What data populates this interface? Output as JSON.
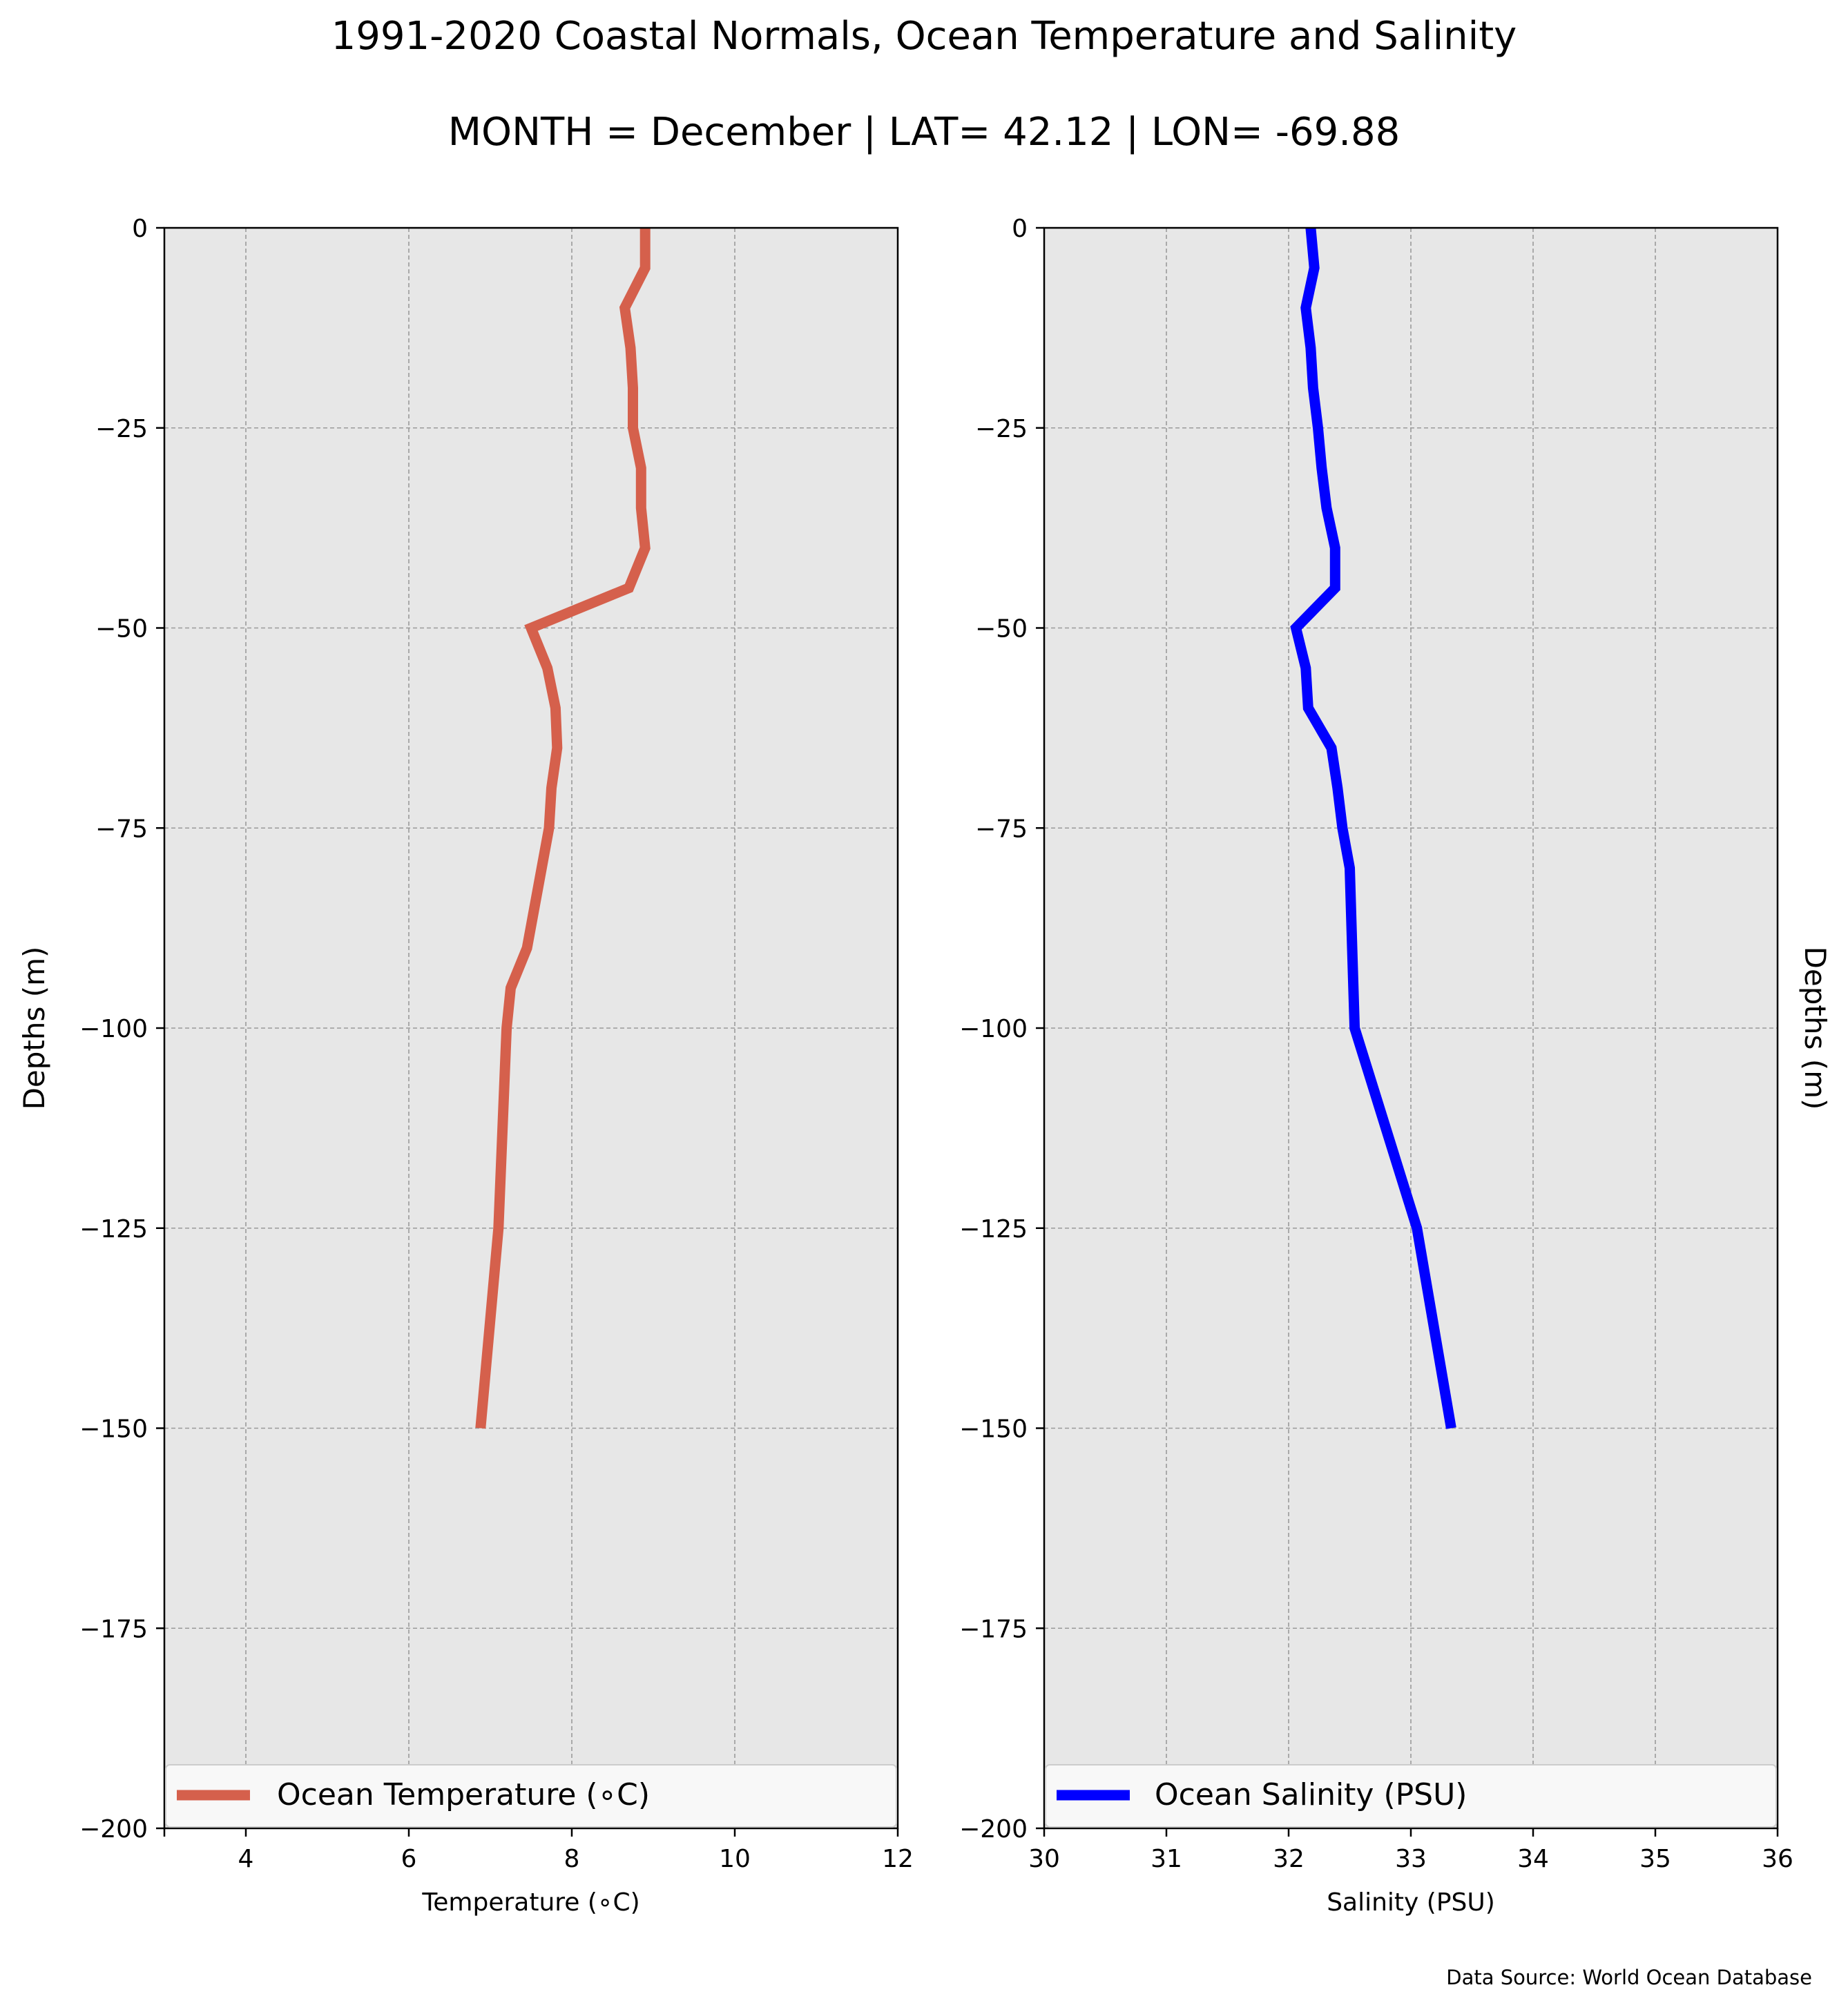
{
  "figure": {
    "title": "1991-2020 Coastal Normals, Ocean Temperature and Salinity",
    "subtitle": "MONTH = December | LAT= 42.12 | LON= -69.88",
    "source_note": "Data Source: World Ocean Database"
  },
  "colors": {
    "temperature_line": "#d5604c",
    "salinity_line": "#0000ff",
    "axes_background": "#e7e7e7",
    "grid": "#9a9a9a"
  },
  "chart_data": [
    {
      "type": "line",
      "xlabel": "Temperature ($^\\circ$C)",
      "xlabel_display": "Temperature (∘C)",
      "ylabel": "Depths (m)",
      "xlim": [
        3,
        12
      ],
      "ylim": [
        -200,
        0
      ],
      "xticks": [
        4,
        6,
        8,
        10,
        12
      ],
      "xtick_labels": [
        "4",
        "6",
        "8",
        "10",
        "12"
      ],
      "yticks": [
        0,
        -25,
        -50,
        -75,
        -100,
        -125,
        -150,
        -175,
        -200
      ],
      "ytick_labels": [
        "0",
        "−25",
        "−50",
        "−75",
        "−100",
        "−125",
        "−150",
        "−175",
        "−200"
      ],
      "grid": true,
      "legend": "lower center",
      "series": [
        {
          "name": "Ocean Temperature ($^\\circ$C)",
          "name_display": "Ocean Temperature (∘C)",
          "x": [
            8.9,
            8.9,
            8.65,
            8.72,
            8.75,
            8.75,
            8.85,
            8.85,
            8.9,
            8.7,
            7.5,
            7.7,
            7.8,
            7.82,
            7.75,
            7.72,
            7.45,
            7.25,
            7.2,
            7.1,
            6.88
          ],
          "y": [
            0,
            -5,
            -10,
            -15,
            -20,
            -25,
            -30,
            -35,
            -40,
            -45,
            -50,
            -55,
            -60,
            -65,
            -70,
            -75,
            -90,
            -95,
            -100,
            -125,
            -150
          ]
        }
      ]
    },
    {
      "type": "line",
      "xlabel": "Salinity (PSU)",
      "ylabel": "Depths (m)",
      "xlim": [
        30,
        36
      ],
      "ylim": [
        -200,
        0
      ],
      "xticks": [
        30,
        31,
        32,
        33,
        34,
        35,
        36
      ],
      "xtick_labels": [
        "30",
        "31",
        "32",
        "33",
        "34",
        "35",
        "36"
      ],
      "yticks": [
        0,
        -25,
        -50,
        -75,
        -100,
        -125,
        -150,
        -175,
        -200
      ],
      "ytick_labels": [
        "0",
        "−25",
        "−50",
        "−75",
        "−100",
        "−125",
        "−150",
        "−175",
        "−200"
      ],
      "grid": true,
      "legend": "lower center",
      "series": [
        {
          "name": "Ocean Salinity (PSU)",
          "x": [
            32.18,
            32.21,
            32.14,
            32.18,
            32.2,
            32.24,
            32.27,
            32.31,
            32.38,
            32.38,
            32.06,
            32.14,
            32.16,
            32.35,
            32.4,
            32.44,
            32.5,
            32.52,
            32.54,
            33.05,
            33.33
          ],
          "y": [
            0,
            -5,
            -10,
            -15,
            -20,
            -25,
            -30,
            -35,
            -40,
            -45,
            -50,
            -55,
            -60,
            -65,
            -70,
            -75,
            -80,
            -90,
            -100,
            -125,
            -150
          ]
        }
      ]
    }
  ]
}
